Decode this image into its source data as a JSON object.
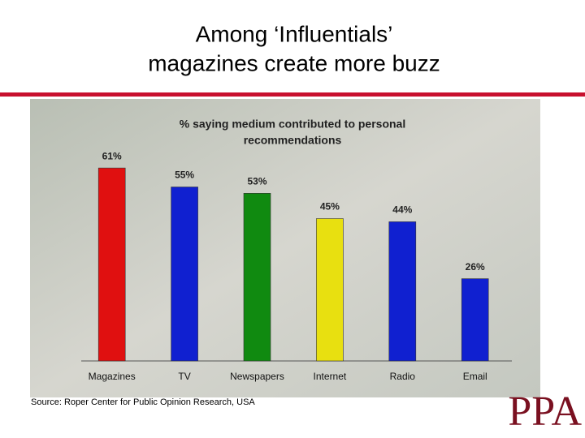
{
  "title": [
    "Among ‘Influentials’",
    "magazines create more buzz"
  ],
  "chart_data": {
    "type": "bar",
    "title": [
      "% saying medium contributed to personal",
      "recommendations"
    ],
    "categories": [
      "Magazines",
      "TV",
      "Newspapers",
      "Internet",
      "Radio",
      "Email"
    ],
    "values": [
      61,
      55,
      53,
      45,
      44,
      26
    ],
    "value_labels": [
      "61%",
      "55%",
      "53%",
      "45%",
      "44%",
      "26%"
    ],
    "colors": [
      "#e01010",
      "#1020d0",
      "#108a10",
      "#e8e010",
      "#1020d0",
      "#1020d0"
    ]
  },
  "source": "Source: Roper Center for Public Opinion Research, USA",
  "logo": "PPA"
}
